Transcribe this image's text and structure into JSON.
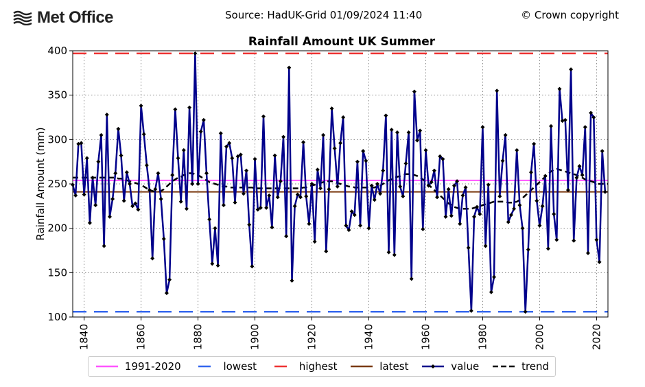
{
  "header": {
    "logo_text": "Met Office",
    "source": "Source: HadUK-Grid 01/09/2024 11:40",
    "copyright": "© Crown copyright"
  },
  "chart_data": {
    "type": "line",
    "title": "Rainfall Amount UK Summer",
    "xlabel": "",
    "ylabel": "Rainfall Amount (mm)",
    "xlim": [
      1836,
      2024
    ],
    "ylim": [
      100,
      400
    ],
    "xticks": [
      1840,
      1860,
      1880,
      1900,
      1920,
      1940,
      1960,
      1980,
      2000,
      2020
    ],
    "yticks": [
      100,
      150,
      200,
      250,
      300,
      350,
      400
    ],
    "grid": true,
    "legend_position": "bottom",
    "reference_lines": {
      "baseline_1991_2020": 254,
      "lowest": 106,
      "highest": 397,
      "latest": 241
    },
    "colors": {
      "baseline": "#ff55ff",
      "lowest": "#3366ee",
      "highest": "#ee3333",
      "latest": "#7a3a10",
      "value": "#00008b",
      "trend": "#000000"
    },
    "legend": [
      "1991-2020",
      "lowest",
      "highest",
      "latest",
      "value",
      "trend"
    ],
    "series": [
      {
        "name": "value",
        "start_year": 1836,
        "values": [
          249,
          237,
          295,
          296,
          238,
          279,
          206,
          257,
          226,
          275,
          305,
          180,
          328,
          213,
          233,
          262,
          312,
          282,
          231,
          263,
          250,
          225,
          228,
          221,
          338,
          306,
          271,
          243,
          166,
          244,
          262,
          233,
          188,
          127,
          142,
          260,
          334,
          279,
          230,
          288,
          222,
          336,
          250,
          397,
          250,
          309,
          322,
          262,
          210,
          160,
          200,
          158,
          307,
          226,
          292,
          296,
          279,
          229,
          281,
          283,
          239,
          265,
          204,
          157,
          278,
          221,
          223,
          326,
          223,
          237,
          201,
          282,
          235,
          253,
          303,
          191,
          381,
          141,
          225,
          238,
          235,
          297,
          236,
          205,
          250,
          185,
          266,
          245,
          305,
          174,
          244,
          335,
          290,
          247,
          296,
          325,
          203,
          198,
          219,
          215,
          275,
          203,
          287,
          276,
          200,
          248,
          232,
          250,
          239,
          265,
          327,
          173,
          311,
          170,
          308,
          247,
          236,
          273,
          308,
          143,
          354,
          299,
          310,
          199,
          288,
          248,
          252,
          265,
          235,
          281,
          278,
          213,
          244,
          214,
          248,
          253,
          205,
          237,
          246,
          178,
          107,
          213,
          224,
          216,
          314,
          180,
          249,
          128,
          145,
          355,
          236,
          276,
          305,
          207,
          215,
          222,
          288,
          226,
          200,
          106,
          176,
          263,
          295,
          231,
          203,
          225,
          259,
          177,
          315,
          216,
          187,
          357,
          321,
          322,
          243,
          379,
          186,
          257,
          270,
          260,
          314,
          172,
          330,
          325,
          187,
          162,
          287,
          241
        ]
      },
      {
        "name": "trend",
        "start_year": 1836,
        "values": [
          257,
          257,
          257,
          257,
          257,
          257,
          257,
          257,
          257,
          257,
          257,
          257,
          257,
          257,
          257,
          257,
          256,
          256,
          255,
          254,
          253,
          252,
          251,
          250,
          249,
          247,
          245,
          243,
          242,
          241,
          241,
          242,
          244,
          247,
          250,
          253,
          255,
          257,
          258,
          260,
          261,
          262,
          262,
          261,
          260,
          258,
          256,
          254,
          252,
          251,
          250,
          249,
          248,
          247,
          247,
          246,
          246,
          246,
          246,
          246,
          246,
          246,
          246,
          246,
          245,
          245,
          245,
          245,
          245,
          245,
          245,
          245,
          245,
          245,
          245,
          245,
          245,
          245,
          245,
          245,
          245,
          246,
          246,
          247,
          248,
          249,
          250,
          251,
          252,
          253,
          253,
          253,
          252,
          251,
          250,
          249,
          248,
          247,
          247,
          246,
          246,
          246,
          246,
          246,
          246,
          246,
          246,
          247,
          248,
          250,
          252,
          254,
          255,
          257,
          258,
          259,
          260,
          261,
          261,
          261,
          260,
          259,
          257,
          255,
          252,
          249,
          246,
          243,
          240,
          237,
          234,
          231,
          228,
          226,
          224,
          223,
          222,
          222,
          222,
          222,
          222,
          223,
          224,
          225,
          226,
          227,
          228,
          229,
          230,
          230,
          230,
          230,
          230,
          229,
          229,
          229,
          230,
          232,
          234,
          237,
          240,
          243,
          246,
          249,
          252,
          255,
          258,
          261,
          264,
          266,
          267,
          266,
          265,
          264,
          263,
          262,
          261,
          260,
          258,
          257,
          255,
          254,
          253,
          252,
          250,
          250,
          250,
          250,
          250
        ]
      }
    ]
  },
  "legend_labels": {
    "baseline": "1991-2020",
    "lowest": "lowest",
    "highest": "highest",
    "latest": "latest",
    "value": "value",
    "trend": "trend"
  }
}
